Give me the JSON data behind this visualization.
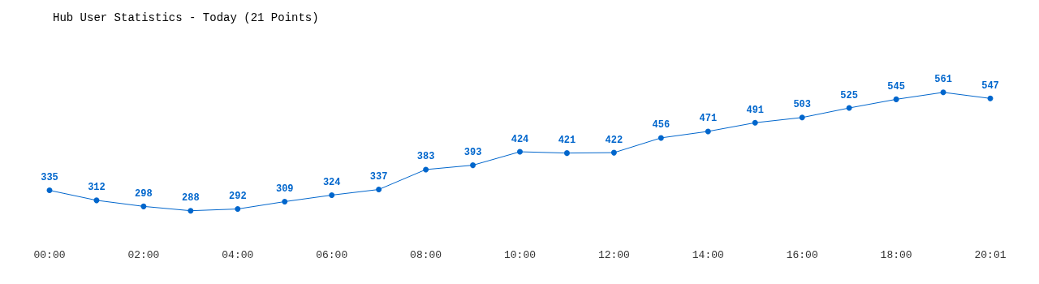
{
  "chart_data": {
    "type": "line",
    "title": "Hub User Statistics - Today (21 Points)",
    "categories": [
      "00:00",
      null,
      "02:00",
      null,
      "04:00",
      null,
      "06:00",
      null,
      "08:00",
      null,
      "10:00",
      null,
      "12:00",
      null,
      "14:00",
      null,
      "16:00",
      null,
      "18:00",
      null,
      "20:01"
    ],
    "series": [
      {
        "color": "#0066cc",
        "values": [
          335,
          312,
          298,
          288,
          292,
          309,
          324,
          337,
          383,
          393,
          424,
          421,
          422,
          456,
          471,
          491,
          503,
          525,
          545,
          561,
          547
        ]
      }
    ],
    "data_labels": true,
    "marker": "circle",
    "line_style": "solid",
    "grid": false,
    "legend": false
  }
}
